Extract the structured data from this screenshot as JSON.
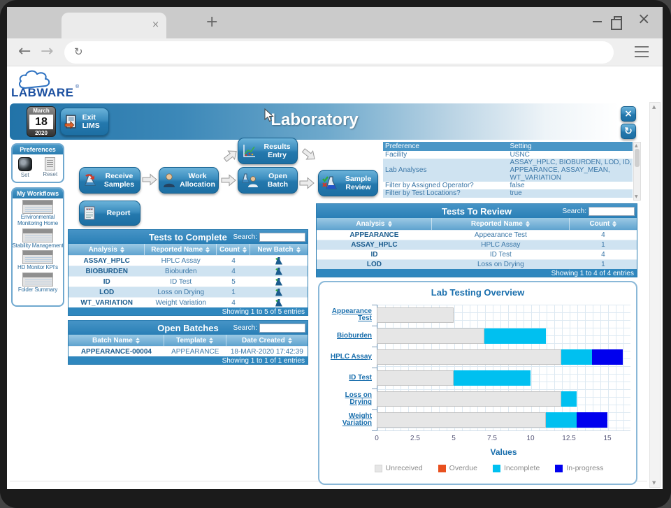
{
  "icons": {
    "tab_close": "×",
    "new_tab": "+",
    "close": "×",
    "back": "←",
    "forward": "→",
    "reload": "↻",
    "app_close": "×",
    "app_refresh": "↻",
    "scroll_up": "▲",
    "scroll_down": "▼"
  },
  "logo": {
    "text": "LABWARE",
    "reg": "®"
  },
  "header": {
    "title": "Laboratory",
    "date_month": "March",
    "date_day": "18",
    "date_year": "2020",
    "exit_label": "Exit LIMS"
  },
  "sidebar": {
    "preferences": {
      "title": "Preferences",
      "set_label": "Set",
      "reset_label": "Reset"
    },
    "workflows": {
      "title": "My Workflows",
      "items": [
        "Environmental Monitoring Home",
        "Stability Management",
        "HD Monitor KPI's",
        "Folder Summary"
      ]
    }
  },
  "workflow": {
    "receive": "Receive Samples",
    "allocation": "Work Allocation",
    "results": "Results Entry",
    "open_batch": "Open Batch",
    "review": "Sample Review",
    "report": "Report"
  },
  "preference_table": {
    "headers": [
      "Preference",
      "Setting"
    ],
    "rows": [
      [
        "Facility",
        "USNC"
      ],
      [
        "Lab Analyses",
        "ASSAY_HPLC, BIOBURDEN, LOD, ID, APPEARANCE, ASSAY_MEAN, WT_VARIATION"
      ],
      [
        "Filter by Assigned Operator?",
        "false"
      ],
      [
        "Filter by Test Locations?",
        "true"
      ]
    ]
  },
  "tests_to_complete": {
    "title": "Tests to Complete",
    "search_label": "Search:",
    "search_value": "",
    "headers": [
      "Analysis",
      "Reported Name",
      "Count",
      "New Batch"
    ],
    "rows": [
      [
        "ASSAY_HPLC",
        "HPLC Assay",
        "4"
      ],
      [
        "BIOBURDEN",
        "Bioburden",
        "4"
      ],
      [
        "ID",
        "ID Test",
        "5"
      ],
      [
        "LOD",
        "Loss on Drying",
        "1"
      ],
      [
        "WT_VARIATION",
        "Weight Variation",
        "4"
      ]
    ],
    "footer": "Showing 1 to 5 of 5 entries"
  },
  "open_batches": {
    "title": "Open Batches",
    "search_label": "Search:",
    "search_value": "",
    "headers": [
      "Batch Name",
      "Template",
      "Date Created"
    ],
    "rows": [
      [
        "APPEARANCE-00004",
        "APPEARANCE",
        "18-MAR-2020 17:42:39"
      ]
    ],
    "footer": "Showing 1 to 1 of 1 entries"
  },
  "tests_to_review": {
    "title": "Tests To Review",
    "search_label": "Search:",
    "search_value": "",
    "headers": [
      "Analysis",
      "Reported Name",
      "Count"
    ],
    "rows": [
      [
        "APPEARANCE",
        "Appearance Test",
        "4"
      ],
      [
        "ASSAY_HPLC",
        "HPLC Assay",
        "1"
      ],
      [
        "ID",
        "ID Test",
        "4"
      ],
      [
        "LOD",
        "Loss on Drying",
        "1"
      ]
    ],
    "footer": "Showing 1 to 4 of 4 entries"
  },
  "chart_data": {
    "type": "bar",
    "orientation": "horizontal",
    "stacked": true,
    "title": "Lab Testing Overview",
    "categories": [
      "Appearance Test",
      "Bioburden",
      "HPLC Assay",
      "ID Test",
      "Loss on Drying",
      "Weight Variation"
    ],
    "series": [
      {
        "name": "Unreceived",
        "color": "#e6e6e6",
        "values": [
          5,
          7,
          12,
          5,
          12,
          11
        ]
      },
      {
        "name": "Overdue",
        "color": "#e8501f",
        "values": [
          0,
          0,
          0,
          0,
          0,
          0
        ]
      },
      {
        "name": "Incomplete",
        "color": "#00c0f0",
        "values": [
          0,
          4,
          2,
          5,
          1,
          2
        ]
      },
      {
        "name": "In-progress",
        "color": "#0000ee",
        "values": [
          0,
          0,
          2,
          0,
          0,
          2
        ]
      }
    ],
    "xlabel": "Values",
    "xticks": [
      0,
      2.5,
      5,
      7.5,
      10,
      12.5,
      15
    ],
    "xlim": [
      0,
      16.5
    ],
    "grid": true,
    "legend_position": "bottom"
  }
}
